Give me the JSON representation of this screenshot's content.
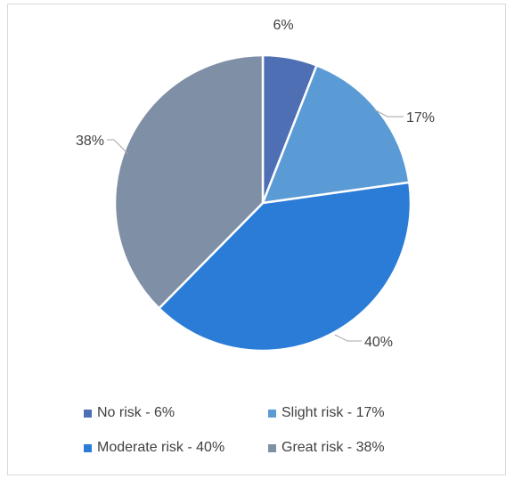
{
  "chart_data": {
    "type": "pie",
    "categories": [
      "No risk - 6%",
      "Slight risk - 17%",
      "Moderate risk - 40%",
      "Great risk - 38%"
    ],
    "values": [
      6,
      17,
      40,
      38
    ],
    "data_labels": [
      "6%",
      "17%",
      "40%",
      "38%"
    ],
    "colors": [
      "#4f6fb5",
      "#5b9bd5",
      "#2a7cd6",
      "#7f8fa6"
    ],
    "legend_position": "bottom",
    "title": ""
  }
}
